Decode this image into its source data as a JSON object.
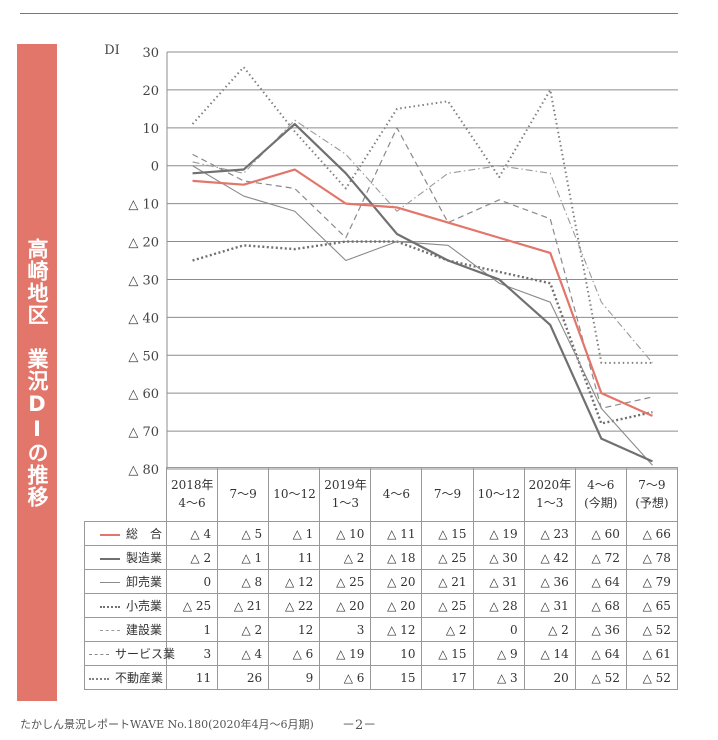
{
  "side_title": "高崎地区　業況DIの推移",
  "chart_data": {
    "type": "line",
    "ylabel": "DI",
    "ylim": [
      -80,
      30
    ],
    "yticks": [
      30,
      20,
      10,
      0,
      -10,
      -20,
      -30,
      -40,
      -50,
      -60,
      -70,
      -80
    ],
    "ytick_labels": [
      "30",
      "20",
      "10",
      "0",
      "△ 10",
      "△ 20",
      "△ 30",
      "△ 40",
      "△ 50",
      "△ 60",
      "△ 70",
      "△ 80"
    ],
    "categories": [
      {
        "line1": "2018年",
        "line2": "4～6"
      },
      {
        "line1": "7～9",
        "line2": ""
      },
      {
        "line1": "10～12",
        "line2": ""
      },
      {
        "line1": "2019年",
        "line2": "1～3"
      },
      {
        "line1": "4～6",
        "line2": ""
      },
      {
        "line1": "7～9",
        "line2": ""
      },
      {
        "line1": "10～12",
        "line2": ""
      },
      {
        "line1": "2020年",
        "line2": "1～3"
      },
      {
        "line1": "4～6",
        "line2": "(今期)"
      },
      {
        "line1": "7～9",
        "line2": "(予想)"
      }
    ],
    "grid": true,
    "series": [
      {
        "name": "総　合",
        "color": "#e2766a",
        "style": "solid-bold",
        "values": [
          -4,
          -5,
          -1,
          -10,
          -11,
          -15,
          -19,
          -23,
          -60,
          -66
        ],
        "labels": [
          "△ 4",
          "△ 5",
          "△ 1",
          "△ 10",
          "△ 11",
          "△ 15",
          "△ 19",
          "△ 23",
          "△ 60",
          "△ 66"
        ]
      },
      {
        "name": "製造業",
        "color": "#707070",
        "style": "solid-bold",
        "values": [
          -2,
          -1,
          11,
          -2,
          -18,
          -25,
          -30,
          -42,
          -72,
          -78
        ],
        "labels": [
          "△ 2",
          "△ 1",
          "11",
          "△ 2",
          "△ 18",
          "△ 25",
          "△ 30",
          "△ 42",
          "△ 72",
          "△ 78"
        ]
      },
      {
        "name": "卸売業",
        "color": "#8a8a8a",
        "style": "solid-thin",
        "values": [
          0,
          -8,
          -12,
          -25,
          -20,
          -21,
          -31,
          -36,
          -64,
          -79
        ],
        "labels": [
          "0",
          "△ 8",
          "△ 12",
          "△ 25",
          "△ 20",
          "△ 21",
          "△ 31",
          "△ 36",
          "△ 64",
          "△ 79"
        ]
      },
      {
        "name": "小売業",
        "color": "#707070",
        "style": "dotted-bold",
        "values": [
          -25,
          -21,
          -22,
          -20,
          -20,
          -25,
          -28,
          -31,
          -68,
          -65
        ],
        "labels": [
          "△ 25",
          "△ 21",
          "△ 22",
          "△ 20",
          "△ 20",
          "△ 25",
          "△ 28",
          "△ 31",
          "△ 68",
          "△ 65"
        ]
      },
      {
        "name": "建設業",
        "color": "#9a9a9a",
        "style": "dashdot",
        "values": [
          1,
          -2,
          12,
          3,
          -12,
          -2,
          0,
          -2,
          -36,
          -52
        ],
        "labels": [
          "1",
          "△ 2",
          "12",
          "3",
          "△ 12",
          "△ 2",
          "0",
          "△ 2",
          "△ 36",
          "△ 52"
        ]
      },
      {
        "name": "サービス業",
        "color": "#8a8a8a",
        "style": "dashed",
        "values": [
          3,
          -4,
          -6,
          -19,
          10,
          -15,
          -9,
          -14,
          -64,
          -61
        ],
        "labels": [
          "3",
          "△ 4",
          "△ 6",
          "△ 19",
          "10",
          "△ 15",
          "△ 9",
          "△ 14",
          "△ 64",
          "△ 61"
        ]
      },
      {
        "name": "不動産業",
        "color": "#808080",
        "style": "dotted",
        "values": [
          11,
          26,
          9,
          -6,
          15,
          17,
          -3,
          20,
          -52,
          -52
        ],
        "labels": [
          "11",
          "26",
          "9",
          "△ 6",
          "15",
          "17",
          "△ 3",
          "20",
          "△ 52",
          "△ 52"
        ]
      }
    ]
  },
  "footer": {
    "publication": "たかしん景況レポートWAVE No.180(2020年4月～6月期)",
    "page": "－2－"
  }
}
